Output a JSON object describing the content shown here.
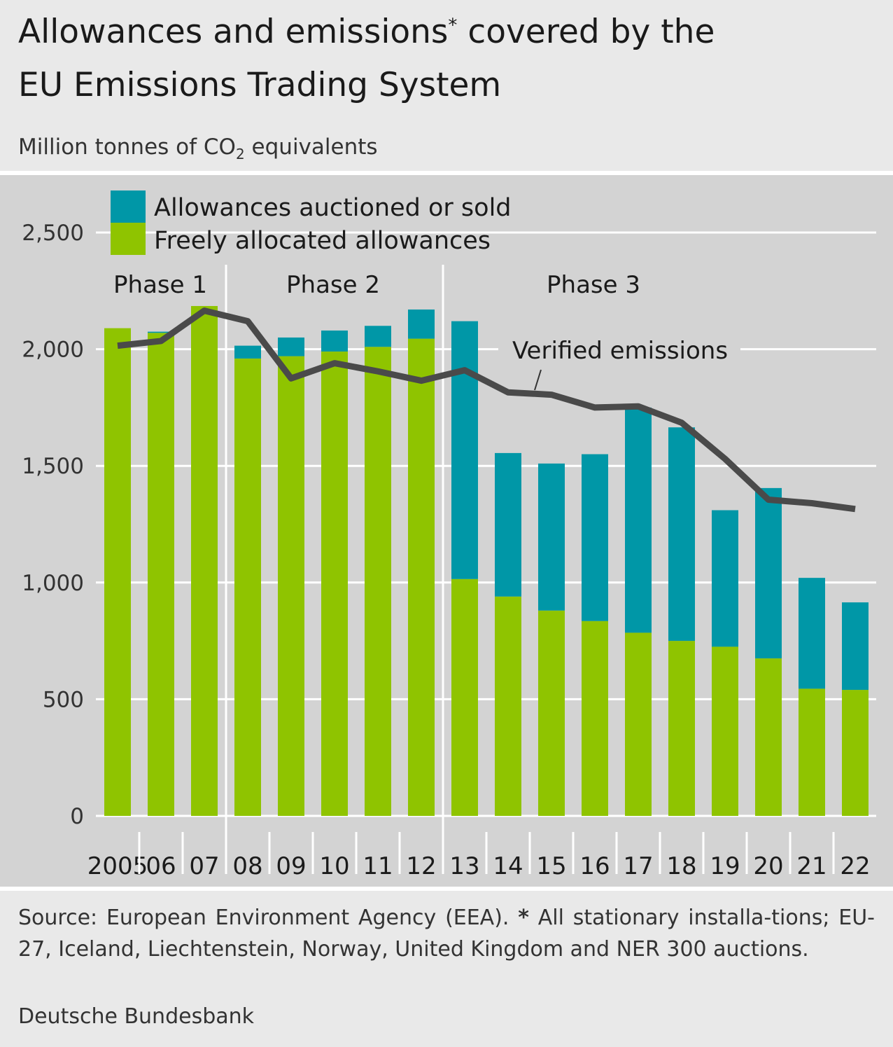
{
  "header": {
    "title_line1": "Allowances and emissions",
    "title_star": "*",
    "title_line1_end": " covered by the",
    "title_line2": "EU Emissions Trading System",
    "subtitle_pre": "Million tonnes of CO",
    "subtitle_sub": "2",
    "subtitle_post": " equivalents"
  },
  "footer": {
    "source_pre": "Source: European Environment Agency (EEA). ",
    "source_star": "*",
    "source_post": " All stationary installa-tions; EU-27, Iceland, Liechtenstein, Norway, United Kingdom and NER 300 auctions.",
    "credit": "Deutsche Bundesbank"
  },
  "colors": {
    "auctioned": "#0097a7",
    "free": "#8fc400",
    "emissions_line": "#4a4a4a",
    "plot_background": "#d3d3d3",
    "gridline": "#ffffff"
  },
  "chart_data": {
    "type": "bar",
    "stacked": true,
    "categories": [
      "2005",
      "06",
      "07",
      "08",
      "09",
      "10",
      "11",
      "12",
      "13",
      "14",
      "15",
      "16",
      "17",
      "18",
      "19",
      "20",
      "21",
      "22"
    ],
    "series": [
      {
        "name": "Freely allocated allowances",
        "type": "bar",
        "color": "#8fc400",
        "values": [
          2090,
          2070,
          2185,
          1960,
          1970,
          1990,
          2010,
          2045,
          1015,
          940,
          880,
          835,
          785,
          750,
          725,
          675,
          545,
          540
        ]
      },
      {
        "name": "Allowances auctioned or sold",
        "type": "bar",
        "color": "#0097a7",
        "values": [
          0,
          5,
          0,
          55,
          80,
          90,
          90,
          125,
          1105,
          615,
          630,
          715,
          965,
          915,
          585,
          730,
          475,
          375
        ]
      },
      {
        "name": "Verified emissions",
        "type": "line",
        "color": "#4a4a4a",
        "values": [
          2015,
          2035,
          2165,
          2120,
          1875,
          1940,
          1905,
          1865,
          1910,
          1815,
          1805,
          1750,
          1755,
          1685,
          1530,
          1355,
          1340,
          1315
        ]
      }
    ],
    "ylim": [
      0,
      2500
    ],
    "yticks": [
      0,
      500,
      1000,
      1500,
      2000,
      2500
    ],
    "ytick_labels": [
      "0",
      "500",
      "1,000",
      "1,500",
      "2,000",
      "2,500"
    ],
    "grid": true,
    "legend": {
      "placement": "top-left",
      "items": [
        "Allowances auctioned or sold",
        "Freely allocated allowances"
      ]
    },
    "phases": [
      {
        "label": "Phase 1",
        "first_category": "2005",
        "last_category": "07"
      },
      {
        "label": "Phase 2",
        "first_category": "08",
        "last_category": "12"
      },
      {
        "label": "Phase 3",
        "first_category": "13",
        "last_category": "22"
      }
    ],
    "annotations": [
      {
        "text": "Verified emissions",
        "series": "Verified emissions"
      }
    ]
  }
}
